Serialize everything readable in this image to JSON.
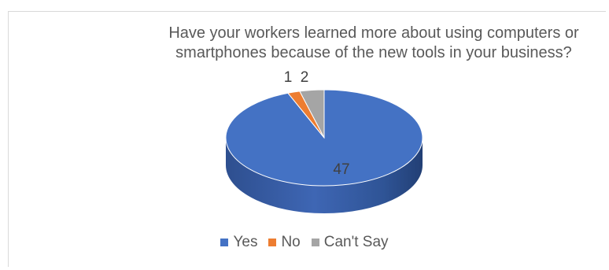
{
  "chart_data": {
    "type": "pie",
    "title_lines": [
      "Have your workers learned more about using computers or",
      "smartphones because of the new tools in your business?"
    ],
    "categories": [
      "Yes",
      "No",
      "Can't Say"
    ],
    "values": [
      47,
      1,
      2
    ],
    "colors": [
      "#4472c4",
      "#ed7d31",
      "#a5a5a5"
    ],
    "data_labels": [
      "47",
      "1",
      "2"
    ],
    "legend_position": "bottom",
    "style": "3d"
  }
}
